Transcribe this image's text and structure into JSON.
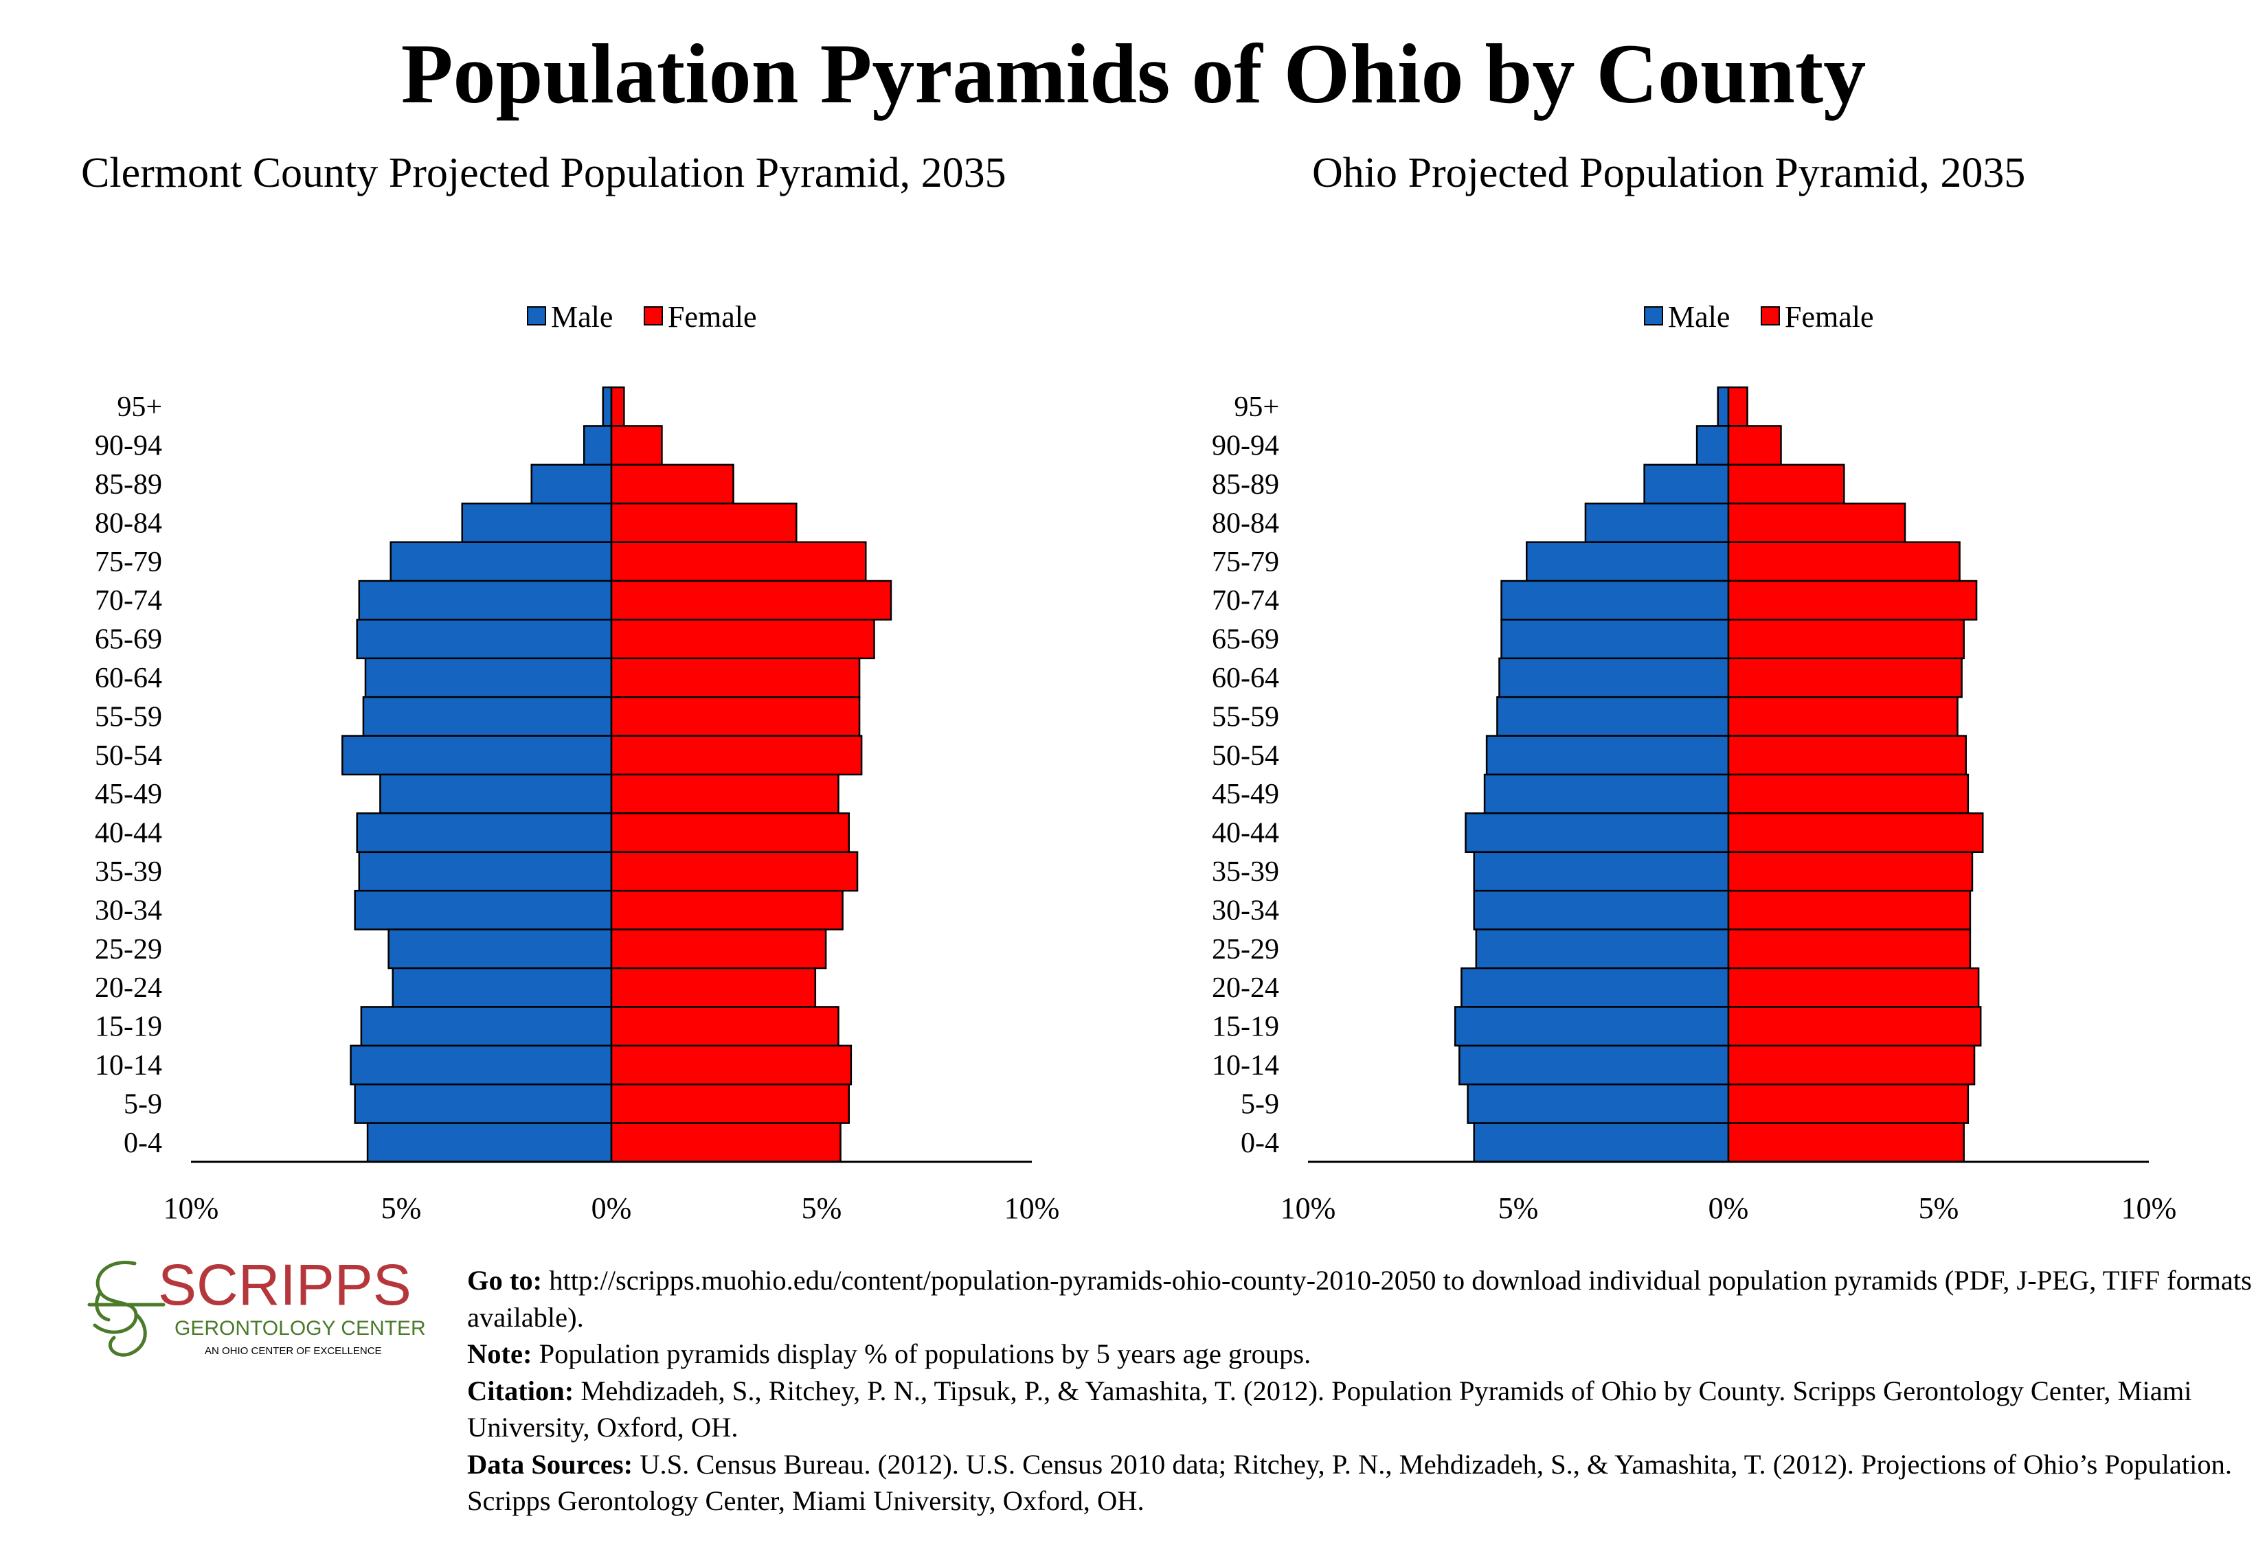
{
  "title": "Population Pyramids of Ohio by County",
  "legend": {
    "male_label": "Male",
    "female_label": "Female"
  },
  "colors": {
    "male": "#1565c0",
    "female": "#ff0000"
  },
  "logo": {
    "name": "SCRIPPS",
    "line1": "GERONTOLOGY CENTER",
    "line2": "AN OHIO CENTER OF EXCELLENCE",
    "name_color": "#b5373c",
    "accent_color": "#4a7a2a"
  },
  "notes": {
    "goto_label": "Go to:",
    "goto_text": "http://scripps.muohio.edu/content/population-pyramids-ohio-county-2010-2050 to download individual population pyramids (PDF, J-PEG, TIFF formats available).",
    "note_label": "Note:",
    "note_text": "Population pyramids display % of populations by 5 years age groups.",
    "citation_label": "Citation:",
    "citation_text": "Mehdizadeh, S., Ritchey, P. N., Tipsuk, P., & Yamashita, T. (2012). Population Pyramids of Ohio by County. Scripps Gerontology Center, Miami University, Oxford, OH.",
    "sources_label": "Data Sources:",
    "sources_text": "U.S. Census Bureau. (2012). U.S. Census 2010 data; Ritchey, P. N., Mehdizadeh, S., & Yamashita, T. (2012). Projections of Ohio’s Population. Scripps Gerontology Center, Miami University, Oxford, OH."
  },
  "chart_data": [
    {
      "type": "bar",
      "orientation": "horizontal-pyramid",
      "title": "Clermont County Projected Population Pyramid, 2035",
      "categories": [
        "95+",
        "90-94",
        "85-89",
        "80-84",
        "75-79",
        "70-74",
        "65-69",
        "60-64",
        "55-59",
        "50-54",
        "45-49",
        "40-44",
        "35-39",
        "30-34",
        "25-29",
        "20-24",
        "15-19",
        "10-14",
        "5-9",
        "0-4"
      ],
      "series": [
        {
          "name": "Male",
          "values": [
            0.2,
            0.65,
            1.9,
            3.55,
            5.25,
            6.0,
            6.05,
            5.85,
            5.9,
            6.4,
            5.5,
            6.05,
            6.0,
            6.1,
            5.3,
            5.2,
            5.95,
            6.2,
            6.1,
            5.8
          ]
        },
        {
          "name": "Female",
          "values": [
            0.3,
            1.2,
            2.9,
            4.4,
            6.05,
            6.65,
            6.25,
            5.9,
            5.9,
            5.95,
            5.4,
            5.65,
            5.85,
            5.5,
            5.1,
            4.85,
            5.4,
            5.7,
            5.65,
            5.45
          ]
        }
      ],
      "x_tick_labels": [
        "10%",
        "5%",
        "0%",
        "5%",
        "10%"
      ],
      "xlim": [
        -10,
        10
      ],
      "legend": "top-center",
      "grid": false
    },
    {
      "type": "bar",
      "orientation": "horizontal-pyramid",
      "title": "Ohio Projected Population Pyramid, 2035",
      "categories": [
        "95+",
        "90-94",
        "85-89",
        "80-84",
        "75-79",
        "70-74",
        "65-69",
        "60-64",
        "55-59",
        "50-54",
        "45-49",
        "40-44",
        "35-39",
        "30-34",
        "25-29",
        "20-24",
        "15-19",
        "10-14",
        "5-9",
        "0-4"
      ],
      "series": [
        {
          "name": "Male",
          "values": [
            0.25,
            0.75,
            2.0,
            3.4,
            4.8,
            5.4,
            5.4,
            5.45,
            5.5,
            5.75,
            5.8,
            6.25,
            6.05,
            6.05,
            6.0,
            6.35,
            6.5,
            6.4,
            6.2,
            6.05
          ]
        },
        {
          "name": "Female",
          "values": [
            0.45,
            1.25,
            2.75,
            4.2,
            5.5,
            5.9,
            5.6,
            5.55,
            5.45,
            5.65,
            5.7,
            6.05,
            5.8,
            5.75,
            5.75,
            5.95,
            6.0,
            5.85,
            5.7,
            5.6
          ]
        }
      ],
      "x_tick_labels": [
        "10%",
        "5%",
        "0%",
        "5%",
        "10%"
      ],
      "xlim": [
        -10,
        10
      ],
      "legend": "top-center",
      "grid": false
    }
  ]
}
